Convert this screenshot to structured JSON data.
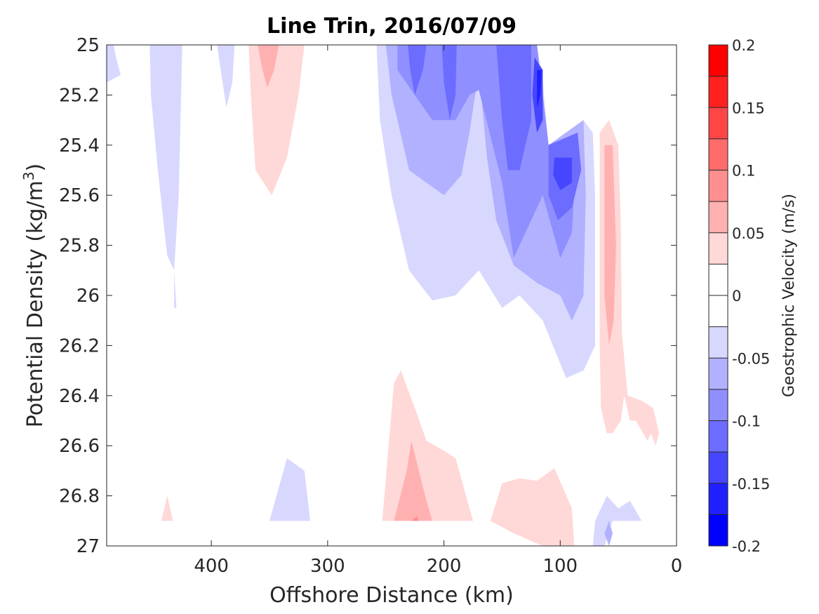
{
  "chart_data": {
    "type": "contour",
    "title": "Line Trin, 2016/07/09",
    "xlabel": "Offshore Distance (km)",
    "ylabel_main": "Potential Density (kg/m",
    "ylabel_sup": "3",
    "ylabel_close": ")",
    "xlim": [
      490,
      0
    ],
    "ylim": [
      25,
      27
    ],
    "x_reversed": true,
    "y_reversed": true,
    "xticks": [
      400,
      300,
      200,
      100,
      0
    ],
    "xtick_labels": [
      "400",
      "300",
      "200",
      "100",
      "0"
    ],
    "yticks": [
      25,
      25.2,
      25.4,
      25.6,
      25.8,
      26,
      26.2,
      26.4,
      26.6,
      26.8,
      27
    ],
    "ytick_labels": [
      "25",
      "25.2",
      "25.4",
      "25.6",
      "25.8",
      "26",
      "26.2",
      "26.4",
      "26.6",
      "26.8",
      "27"
    ],
    "colorbar": {
      "label": "Geostrophic Velocity (m/s)",
      "range": [
        -0.2,
        0.2
      ],
      "levels": [
        -0.2,
        -0.175,
        -0.15,
        -0.125,
        -0.1,
        -0.075,
        -0.05,
        -0.025,
        0,
        0.025,
        0.05,
        0.075,
        0.1,
        0.125,
        0.15,
        0.175,
        0.2
      ],
      "colors": [
        "#0000ff",
        "#2020ff",
        "#4646ff",
        "#6c6cff",
        "#8f8fff",
        "#b1b1ff",
        "#d8d8ff",
        "#ffffff",
        "#ffffff",
        "#ffd8d8",
        "#ffb1b1",
        "#ff8f8f",
        "#ff6c6c",
        "#ff4646",
        "#ff2020",
        "#ff0000"
      ],
      "ticks": [
        0.2,
        0.15,
        0.1,
        0.05,
        0,
        -0.05,
        -0.1,
        -0.15,
        -0.2
      ],
      "tick_labels": [
        "0.2",
        "0.15",
        "0.1",
        "0.05",
        "0",
        "-0.05",
        "-0.1",
        "-0.15",
        "-0.2"
      ]
    },
    "regions": [
      {
        "level": -0.025,
        "color": "#d8d8ff",
        "points": [
          [
            490,
            25
          ],
          [
            484,
            25
          ],
          [
            482,
            25.05
          ],
          [
            478,
            25.12
          ],
          [
            490,
            25.15
          ]
        ]
      },
      {
        "level": -0.025,
        "color": "#d8d8ff",
        "points": [
          [
            453,
            25
          ],
          [
            425,
            25
          ],
          [
            428,
            25.6
          ],
          [
            432,
            25.9
          ],
          [
            432,
            26.05
          ],
          [
            430,
            26.05
          ],
          [
            432,
            25.9
          ],
          [
            438,
            25.84
          ],
          [
            446,
            25.5
          ],
          [
            452,
            25.2
          ]
        ]
      },
      {
        "level": -0.025,
        "color": "#d8d8ff",
        "points": [
          [
            395,
            25
          ],
          [
            380,
            25
          ],
          [
            382,
            25.15
          ],
          [
            387,
            25.25
          ],
          [
            392,
            25.1
          ]
        ]
      },
      {
        "level": 0.025,
        "color": "#ffd8d8",
        "points": [
          [
            368,
            25
          ],
          [
            320,
            25
          ],
          [
            325,
            25.2
          ],
          [
            335,
            25.45
          ],
          [
            348,
            25.6
          ],
          [
            362,
            25.5
          ],
          [
            366,
            25.2
          ]
        ]
      },
      {
        "level": 0.05,
        "color": "#ffb1b1",
        "points": [
          [
            360,
            25
          ],
          [
            342,
            25
          ],
          [
            346,
            25.1
          ],
          [
            352,
            25.17
          ],
          [
            357,
            25.08
          ]
        ]
      },
      {
        "level": -0.025,
        "color": "#d8d8ff",
        "points": [
          [
            258,
            25
          ],
          [
            120,
            25
          ],
          [
            115,
            25.15
          ],
          [
            110,
            25.4
          ],
          [
            80,
            25.3
          ],
          [
            72,
            25.35
          ],
          [
            70,
            25.6
          ],
          [
            70,
            26.2
          ],
          [
            80,
            26.3
          ],
          [
            95,
            26.33
          ],
          [
            115,
            26.1
          ],
          [
            135,
            26.0
          ],
          [
            150,
            26.05
          ],
          [
            170,
            25.9
          ],
          [
            190,
            26.0
          ],
          [
            210,
            26.02
          ],
          [
            230,
            25.9
          ],
          [
            245,
            25.6
          ],
          [
            255,
            25.3
          ]
        ]
      },
      {
        "level": -0.05,
        "color": "#b1b1ff",
        "points": [
          [
            250,
            25
          ],
          [
            120,
            25
          ],
          [
            115,
            25.25
          ],
          [
            110,
            25.4
          ],
          [
            80,
            25.3
          ],
          [
            78,
            25.6
          ],
          [
            80,
            26.0
          ],
          [
            90,
            26.1
          ],
          [
            100,
            26.0
          ],
          [
            120,
            25.95
          ],
          [
            140,
            25.88
          ],
          [
            155,
            25.7
          ],
          [
            163,
            25.45
          ],
          [
            170,
            25.1
          ],
          [
            178,
            25.35
          ],
          [
            185,
            25.52
          ],
          [
            200,
            25.6
          ],
          [
            215,
            25.55
          ],
          [
            230,
            25.5
          ],
          [
            245,
            25.2
          ]
        ]
      },
      {
        "level": -0.075,
        "color": "#8f8fff",
        "points": [
          [
            240,
            25
          ],
          [
            120,
            25
          ],
          [
            110,
            25.4
          ],
          [
            85,
            25.35
          ],
          [
            90,
            25.75
          ],
          [
            100,
            25.85
          ],
          [
            115,
            25.6
          ],
          [
            125,
            25.7
          ],
          [
            140,
            25.85
          ],
          [
            150,
            25.55
          ],
          [
            170,
            25.18
          ],
          [
            178,
            25.2
          ],
          [
            190,
            25.3
          ],
          [
            210,
            25.3
          ],
          [
            225,
            25.2
          ],
          [
            240,
            25.1
          ]
        ]
      },
      {
        "level": -0.1,
        "color": "#6c6cff",
        "points": [
          [
            231,
            25
          ],
          [
            215,
            25
          ],
          [
            218,
            25.1
          ],
          [
            225,
            25.2
          ],
          [
            229,
            25.1
          ]
        ]
      },
      {
        "level": -0.1,
        "color": "#6c6cff",
        "points": [
          [
            202,
            25
          ],
          [
            189,
            25
          ],
          [
            190,
            25.2
          ],
          [
            195,
            25.3
          ],
          [
            200,
            25.15
          ]
        ]
      },
      {
        "level": -0.1,
        "color": "#6c6cff",
        "points": [
          [
            155,
            25
          ],
          [
            125,
            25
          ],
          [
            125,
            25.3
          ],
          [
            135,
            25.5
          ],
          [
            145,
            25.5
          ],
          [
            150,
            25.3
          ]
        ]
      },
      {
        "level": -0.1,
        "color": "#6c6cff",
        "points": [
          [
            110,
            25.4
          ],
          [
            85,
            25.35
          ],
          [
            82,
            25.5
          ],
          [
            90,
            25.65
          ],
          [
            102,
            25.7
          ],
          [
            110,
            25.6
          ]
        ]
      },
      {
        "level": -0.125,
        "color": "#4646ff",
        "points": [
          [
            122,
            25.05
          ],
          [
            115,
            25.1
          ],
          [
            115,
            25.3
          ],
          [
            120,
            25.35
          ],
          [
            124,
            25.2
          ]
        ]
      },
      {
        "level": -0.125,
        "color": "#4646ff",
        "points": [
          [
            105,
            25.45
          ],
          [
            90,
            25.45
          ],
          [
            90,
            25.55
          ],
          [
            100,
            25.58
          ],
          [
            106,
            25.52
          ]
        ]
      },
      {
        "level": -0.15,
        "color": "#2020ff",
        "points": [
          [
            120,
            25.1
          ],
          [
            116,
            25.1
          ],
          [
            117,
            25.2
          ],
          [
            120,
            25.25
          ]
        ]
      },
      {
        "level": 0.025,
        "color": "#ffd8d8",
        "points": [
          [
            66,
            25.35
          ],
          [
            58,
            25.3
          ],
          [
            50,
            25.4
          ],
          [
            48,
            25.7
          ],
          [
            47,
            26.15
          ],
          [
            42,
            26.4
          ],
          [
            30,
            26.42
          ],
          [
            20,
            26.45
          ],
          [
            15,
            26.55
          ],
          [
            18,
            26.6
          ],
          [
            22,
            26.55
          ],
          [
            25,
            26.58
          ],
          [
            35,
            26.5
          ],
          [
            40,
            26.5
          ],
          [
            45,
            26.4
          ],
          [
            48,
            26.5
          ],
          [
            55,
            26.55
          ],
          [
            60,
            26.55
          ],
          [
            65,
            26.45
          ],
          [
            66,
            26.2
          ]
        ]
      },
      {
        "level": 0.05,
        "color": "#ffb1b1",
        "points": [
          [
            62,
            25.4
          ],
          [
            55,
            25.4
          ],
          [
            52,
            25.8
          ],
          [
            54,
            26.1
          ],
          [
            58,
            26.2
          ],
          [
            62,
            26.0
          ]
        ]
      },
      {
        "level": 0.025,
        "color": "#ffd8d8",
        "points": [
          [
            253,
            26.9
          ],
          [
            243,
            26.35
          ],
          [
            237,
            26.3
          ],
          [
            225,
            26.45
          ],
          [
            215,
            26.58
          ],
          [
            200,
            26.62
          ],
          [
            190,
            26.65
          ],
          [
            175,
            26.9
          ]
        ]
      },
      {
        "level": 0.05,
        "color": "#ffb1b1",
        "points": [
          [
            243,
            26.9
          ],
          [
            232,
            26.7
          ],
          [
            228,
            26.58
          ],
          [
            215,
            26.82
          ],
          [
            210,
            26.9
          ]
        ]
      },
      {
        "level": 0.075,
        "color": "#ff8f8f",
        "points": [
          [
            228,
            26.9
          ],
          [
            223,
            26.88
          ],
          [
            222,
            26.9
          ]
        ]
      },
      {
        "level": 0.025,
        "color": "#ffd8d8",
        "points": [
          [
            443,
            26.9
          ],
          [
            438,
            26.8
          ],
          [
            433,
            26.9
          ]
        ]
      },
      {
        "level": 0.025,
        "color": "#ffd8d8",
        "points": [
          [
            160,
            26.9
          ],
          [
            150,
            26.75
          ],
          [
            135,
            26.73
          ],
          [
            120,
            26.74
          ],
          [
            105,
            26.69
          ],
          [
            90,
            26.85
          ],
          [
            88,
            27
          ],
          [
            100,
            27
          ],
          [
            115,
            27
          ],
          [
            140,
            26.95
          ]
        ]
      },
      {
        "level": -0.025,
        "color": "#d8d8ff",
        "points": [
          [
            350,
            26.9
          ],
          [
            335,
            26.65
          ],
          [
            320,
            26.7
          ],
          [
            315,
            26.9
          ]
        ]
      },
      {
        "level": -0.025,
        "color": "#d8d8ff",
        "points": [
          [
            70,
            26.9
          ],
          [
            60,
            26.8
          ],
          [
            50,
            26.85
          ],
          [
            40,
            26.82
          ],
          [
            30,
            26.9
          ],
          [
            55,
            26.9
          ],
          [
            62,
            27
          ],
          [
            72,
            27
          ]
        ]
      },
      {
        "level": -0.05,
        "color": "#b1b1ff",
        "points": [
          [
            62,
            26.95
          ],
          [
            58,
            26.9
          ],
          [
            55,
            26.95
          ],
          [
            58,
            27
          ]
        ]
      }
    ]
  }
}
